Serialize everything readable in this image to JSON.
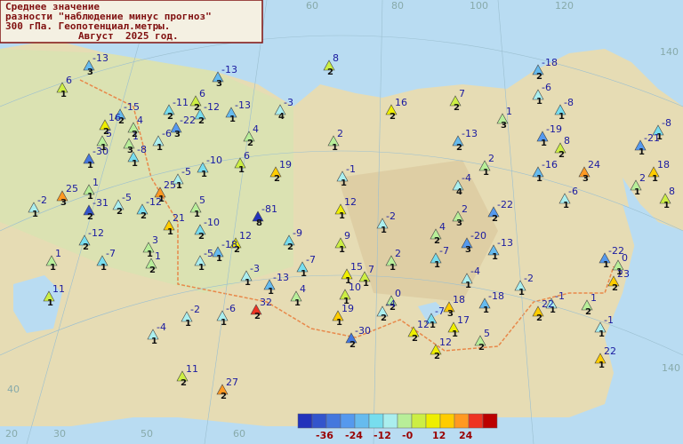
{
  "title": {
    "lines": [
      "Среднее значение",
      "разности \"наблюдение минус прогноз\"",
      "300 гПа. Геопотенциал.метры.",
      "Август  2025 год."
    ]
  },
  "legend": {
    "colors": [
      "#2233bb",
      "#3355cc",
      "#4477dd",
      "#5599ee",
      "#66bbee",
      "#77ddee",
      "#aaeeee",
      "#b8ee99",
      "#ccee44",
      "#eeee00",
      "#ffcc00",
      "#ff9922",
      "#ee3322",
      "#bb0000"
    ],
    "labels": [
      "-36",
      "-24",
      "-12",
      "-0",
      "12",
      "24"
    ]
  },
  "grid_labels": [
    "60",
    "80",
    "100",
    "120",
    "140",
    "40",
    "20",
    "30",
    "50",
    "60",
    "140"
  ],
  "stations": [
    {
      "value": -13,
      "count": 3
    },
    {
      "value": 6,
      "count": 1
    },
    {
      "value": -13,
      "count": 3
    },
    {
      "value": 8,
      "count": 2
    },
    {
      "value": -3,
      "count": 4
    },
    {
      "value": 16,
      "count": 2
    },
    {
      "value": 7,
      "count": 2
    },
    {
      "value": -18,
      "count": 2
    },
    {
      "value": -6,
      "count": 1
    },
    {
      "value": -8,
      "count": 1
    },
    {
      "value": 1,
      "count": 3
    },
    {
      "value": -8,
      "count": 1
    },
    {
      "value": -21,
      "count": 1
    },
    {
      "value": -19,
      "count": 1
    },
    {
      "value": 8,
      "count": 2
    },
    {
      "value": 24,
      "count": 3
    },
    {
      "value": -16,
      "count": 1
    },
    {
      "value": 18,
      "count": 1
    },
    {
      "value": 2,
      "count": 1
    },
    {
      "value": 8,
      "count": 1
    },
    {
      "value": -6,
      "count": 1
    },
    {
      "value": 2,
      "count": 1
    },
    {
      "value": -4,
      "count": 4
    },
    {
      "value": -13,
      "count": 2
    },
    {
      "value": 2,
      "count": 1
    },
    {
      "value": 4,
      "count": 2
    },
    {
      "value": -13,
      "count": 1
    },
    {
      "value": -12,
      "count": 2
    },
    {
      "value": 6,
      "count": 1
    },
    {
      "value": 19,
      "count": 2
    },
    {
      "value": -1,
      "count": 1
    },
    {
      "value": 12,
      "count": 1
    },
    {
      "value": -2,
      "count": 1
    },
    {
      "value": 2,
      "count": 3
    },
    {
      "value": -22,
      "count": 2
    },
    {
      "value": 4,
      "count": 2
    },
    {
      "value": -20,
      "count": 3
    },
    {
      "value": -13,
      "count": 1
    },
    {
      "value": -7,
      "count": 1
    },
    {
      "value": 2,
      "count": 1
    },
    {
      "value": 9,
      "count": 1
    },
    {
      "value": -81,
      "count": 8
    },
    {
      "value": -9,
      "count": 2
    },
    {
      "value": 12,
      "count": 2
    },
    {
      "value": -10,
      "count": 2
    },
    {
      "value": 21,
      "count": 1
    },
    {
      "value": -18,
      "count": 1
    },
    {
      "value": -5,
      "count": 1
    },
    {
      "value": -7,
      "count": 1
    },
    {
      "value": 15,
      "count": 1
    },
    {
      "value": 7,
      "count": 1
    },
    {
      "value": -4,
      "count": 1
    },
    {
      "value": -2,
      "count": 1
    },
    {
      "value": -22,
      "count": 1
    },
    {
      "value": 0,
      "count": 1
    },
    {
      "value": 23,
      "count": 2
    },
    {
      "value": -1,
      "count": 1
    },
    {
      "value": 1,
      "count": 2
    },
    {
      "value": -18,
      "count": 1
    },
    {
      "value": 18,
      "count": 3
    },
    {
      "value": 22,
      "count": 2
    },
    {
      "value": -1,
      "count": 1
    },
    {
      "value": 22,
      "count": 1
    },
    {
      "value": 5,
      "count": 2
    },
    {
      "value": 17,
      "count": 1
    },
    {
      "value": -7,
      "count": 1
    },
    {
      "value": 12,
      "count": 2
    },
    {
      "value": 12,
      "count": 2
    },
    {
      "value": -30,
      "count": 2
    },
    {
      "value": 19,
      "count": 1
    },
    {
      "value": 10,
      "count": 1
    },
    {
      "value": 0,
      "count": 2
    },
    {
      "value": -4,
      "count": 2
    },
    {
      "value": 4,
      "count": 1
    },
    {
      "value": -13,
      "count": 1
    },
    {
      "value": -3,
      "count": 1
    },
    {
      "value": 32,
      "count": 2
    },
    {
      "value": -6,
      "count": 1
    },
    {
      "value": -2,
      "count": 1
    },
    {
      "value": -4,
      "count": 1
    },
    {
      "value": 11,
      "count": 2
    },
    {
      "value": 27,
      "count": 2
    },
    {
      "value": 11,
      "count": 1
    },
    {
      "value": 1,
      "count": 1
    },
    {
      "value": -7,
      "count": 1
    },
    {
      "value": -12,
      "count": 2
    },
    {
      "value": 3,
      "count": 1
    },
    {
      "value": 1,
      "count": 2
    },
    {
      "value": -2,
      "count": 1
    },
    {
      "value": 25,
      "count": 3
    },
    {
      "value": 1,
      "count": 1
    },
    {
      "value": -31,
      "count": 2
    },
    {
      "value": -5,
      "count": 2
    },
    {
      "value": -12,
      "count": 2
    },
    {
      "value": 25,
      "count": 1
    },
    {
      "value": -5,
      "count": 1
    },
    {
      "value": -10,
      "count": 1
    },
    {
      "value": 5,
      "count": 1
    },
    {
      "value": -30,
      "count": 1
    },
    {
      "value": 5,
      "count": 1
    },
    {
      "value": 1,
      "count": 3
    },
    {
      "value": -8,
      "count": 1
    },
    {
      "value": -6,
      "count": 1
    },
    {
      "value": -15,
      "count": 2
    },
    {
      "value": 16,
      "count": 2
    },
    {
      "value": 4,
      "count": 2
    },
    {
      "value": -11,
      "count": 2
    },
    {
      "value": -22,
      "count": 3
    },
    {
      "value": 6,
      "count": 2
    }
  ]
}
